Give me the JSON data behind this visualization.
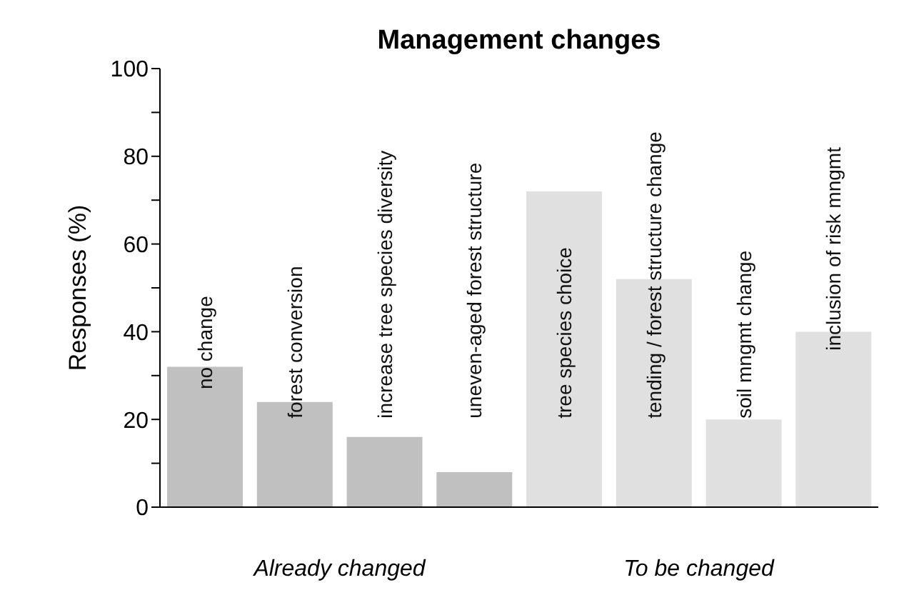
{
  "chart_data": {
    "type": "bar",
    "title": "Management changes",
    "ylabel": "Responses (%)",
    "categories": [
      "no change",
      "forest conversion",
      "increase tree species diversity",
      "uneven-aged forest structure",
      "tree species choice",
      "tending / forest structure change",
      "soil mngmt change",
      "inclusion of risk mngmt"
    ],
    "values": [
      32,
      24,
      16,
      8,
      72,
      52,
      20,
      40
    ],
    "colors": [
      "#c0c0c0",
      "#c0c0c0",
      "#c0c0c0",
      "#c0c0c0",
      "#e0e0e0",
      "#e0e0e0",
      "#e0e0e0",
      "#e0e0e0"
    ],
    "ylim": [
      0,
      100
    ],
    "yticks": [
      0,
      {
        "value": 10,
        "label": null
      },
      20,
      {
        "value": 30,
        "label": null
      },
      40,
      {
        "value": 50,
        "label": null
      },
      60,
      {
        "value": 70,
        "label": null
      },
      80,
      {
        "value": 90,
        "label": null
      },
      100
    ],
    "annotations": [
      "Already changed",
      "To be changed"
    ],
    "grid": false,
    "legend": false
  }
}
